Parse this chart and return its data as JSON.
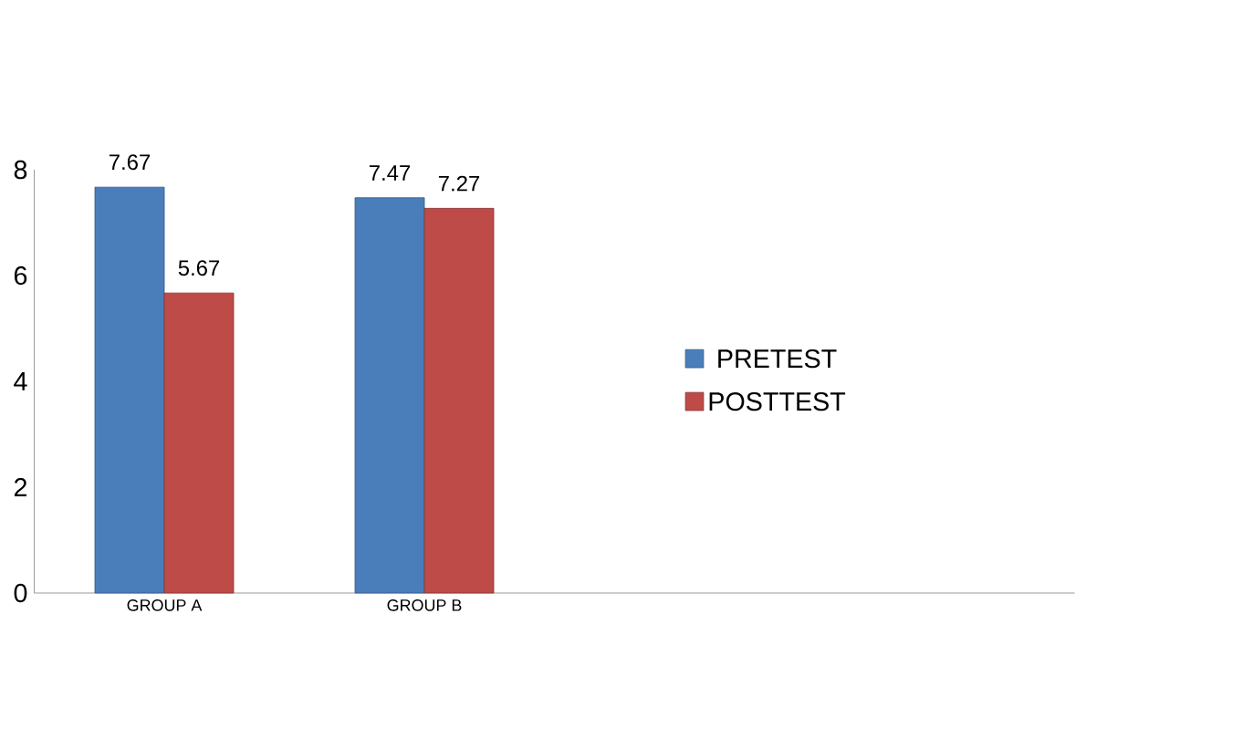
{
  "chart_data": {
    "type": "bar",
    "categories": [
      "GROUP A",
      "GROUP B",
      null,
      null
    ],
    "series": [
      {
        "name": "PRETEST",
        "color": "#4a7ebb",
        "values": [
          7.67,
          7.47,
          null,
          null
        ]
      },
      {
        "name": "POSTTEST",
        "color": "#be4b48",
        "values": [
          5.67,
          7.27,
          null,
          null
        ]
      }
    ],
    "ylim": [
      0,
      8
    ],
    "yticks": [
      0,
      2,
      4,
      6,
      8
    ],
    "data_labels": true,
    "legend": "right",
    "grid": false
  }
}
